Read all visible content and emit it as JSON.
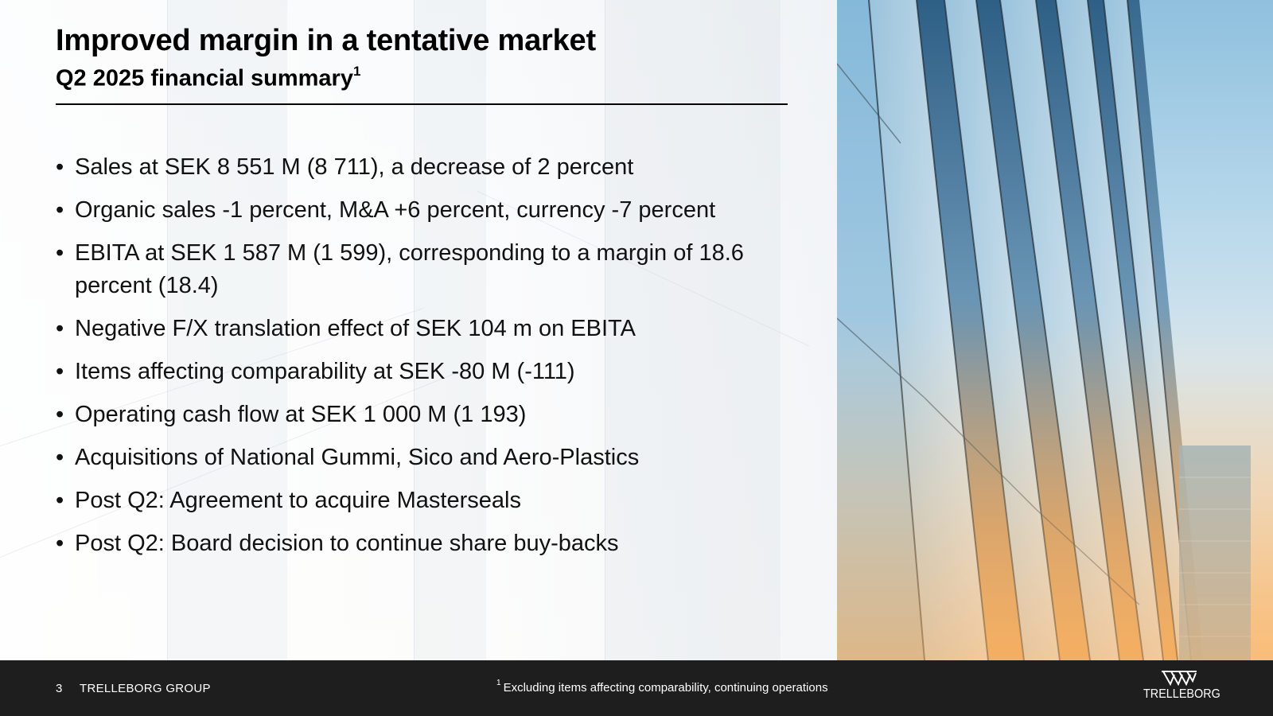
{
  "slide": {
    "title": "Improved margin in a tentative market",
    "subtitle": "Q2 2025 financial summary",
    "subtitle_footnote_marker": "1",
    "bullet_glyph": "•",
    "bullets": [
      "Sales at SEK 8 551 M (8 711), a decrease of 2 percent",
      "Organic sales -1 percent, M&A +6 percent, currency -7 percent",
      "EBITA at SEK 1 587 M (1 599), corresponding to a margin of 18.6 percent (18.4)",
      "Negative F/X translation effect of SEK 104 m on EBITA",
      "Items affecting comparability at SEK -80 M (-111)",
      "Operating cash flow at SEK 1 000 M (1 193)",
      "Acquisitions of National Gummi, Sico and Aero-Plastics",
      "Post Q2: Agreement to acquire Masterseals",
      "Post Q2: Board decision to continue share buy-backs"
    ]
  },
  "footer": {
    "page_number": "3",
    "company": "TRELLEBORG GROUP",
    "footnote_marker": "1",
    "footnote": "Excluding items affecting comparability, continuing operations",
    "logo_text": "TRELLEBORG",
    "logo_icon": "trelleborg-logo-icon"
  },
  "colors": {
    "footer_bg": "#1e1e1e",
    "text": "#000000",
    "footer_text": "#ffffff"
  }
}
